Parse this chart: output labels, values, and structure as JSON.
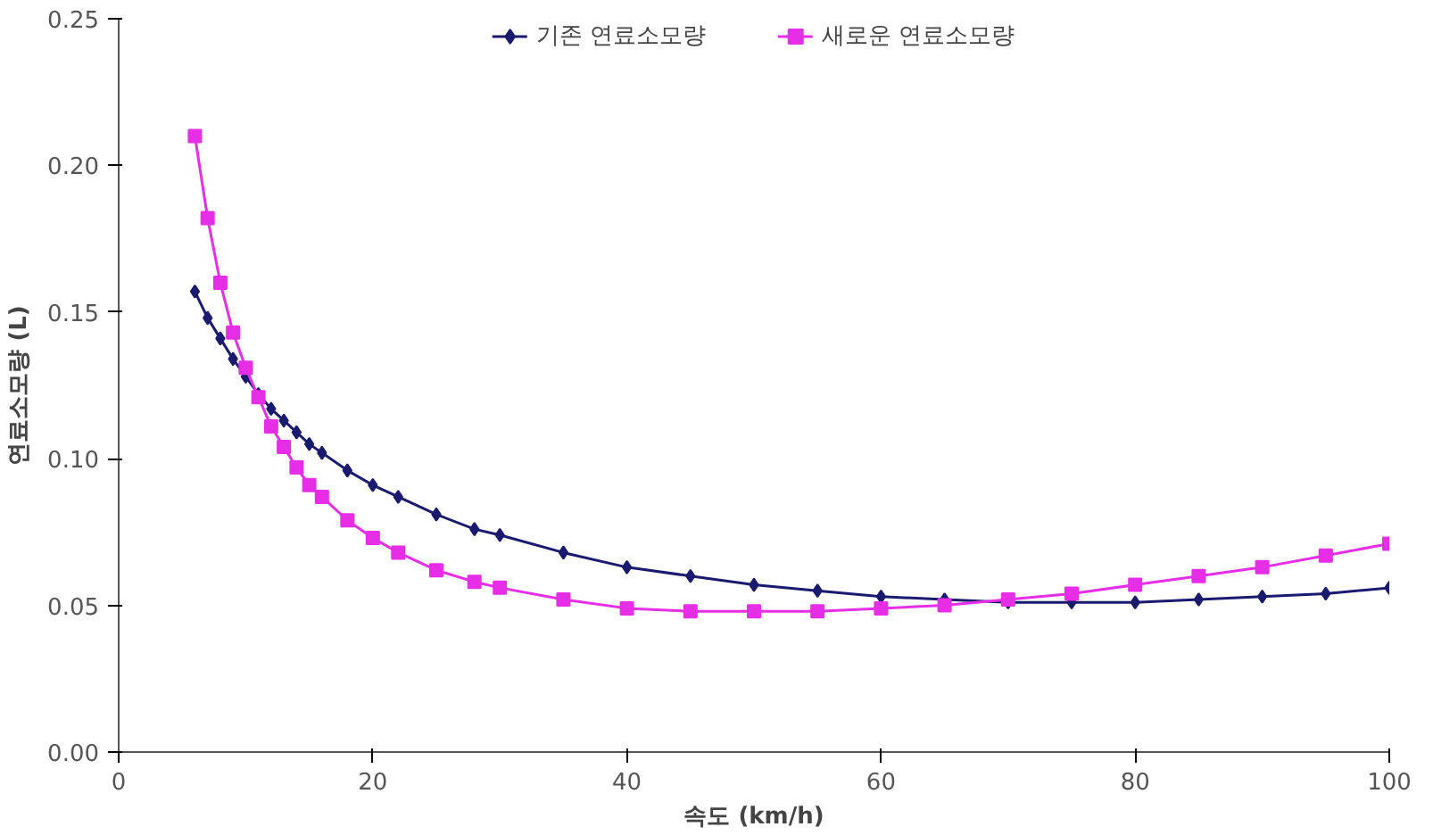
{
  "chart_data": {
    "type": "line",
    "xlabel": "속도 (km/h)",
    "ylabel": "연료소모량 (L)",
    "x": [
      6,
      7,
      8,
      9,
      10,
      11,
      12,
      13,
      14,
      15,
      16,
      18,
      20,
      22,
      25,
      28,
      30,
      35,
      40,
      45,
      50,
      55,
      60,
      65,
      70,
      75,
      80,
      85,
      90,
      95,
      100
    ],
    "series": [
      {
        "name": "기존 연료소모량",
        "color": "#1a1a6e",
        "marker": "diamond",
        "values": [
          0.157,
          0.148,
          0.141,
          0.134,
          0.128,
          0.122,
          0.117,
          0.113,
          0.109,
          0.105,
          0.102,
          0.096,
          0.091,
          0.087,
          0.081,
          0.076,
          0.074,
          0.068,
          0.063,
          0.06,
          0.057,
          0.055,
          0.053,
          0.052,
          0.051,
          0.051,
          0.051,
          0.052,
          0.053,
          0.054,
          0.056
        ]
      },
      {
        "name": "새로운 연료소모량",
        "color": "#e62ee6",
        "marker": "square",
        "values": [
          0.21,
          0.182,
          0.16,
          0.143,
          0.131,
          0.121,
          0.111,
          0.104,
          0.097,
          0.091,
          0.087,
          0.079,
          0.073,
          0.068,
          0.062,
          0.058,
          0.056,
          0.052,
          0.049,
          0.048,
          0.048,
          0.048,
          0.049,
          0.05,
          0.052,
          0.054,
          0.057,
          0.06,
          0.063,
          0.067,
          0.071
        ]
      }
    ],
    "xlim": [
      0,
      100
    ],
    "xticks": [
      0,
      20,
      40,
      60,
      80,
      100
    ],
    "ylim": [
      0,
      0.25
    ],
    "yticks": [
      {
        "value": 0,
        "label": "0.00"
      },
      {
        "value": 0.05,
        "label": "0.05"
      },
      {
        "value": 0.1,
        "label": "0.10"
      },
      {
        "value": 0.15,
        "label": "0.15"
      },
      {
        "value": 0.2,
        "label": "0.20"
      },
      {
        "value": 0.25,
        "label": "0.25"
      }
    ],
    "grid": false,
    "legend": "top center",
    "line_style": "solid"
  }
}
